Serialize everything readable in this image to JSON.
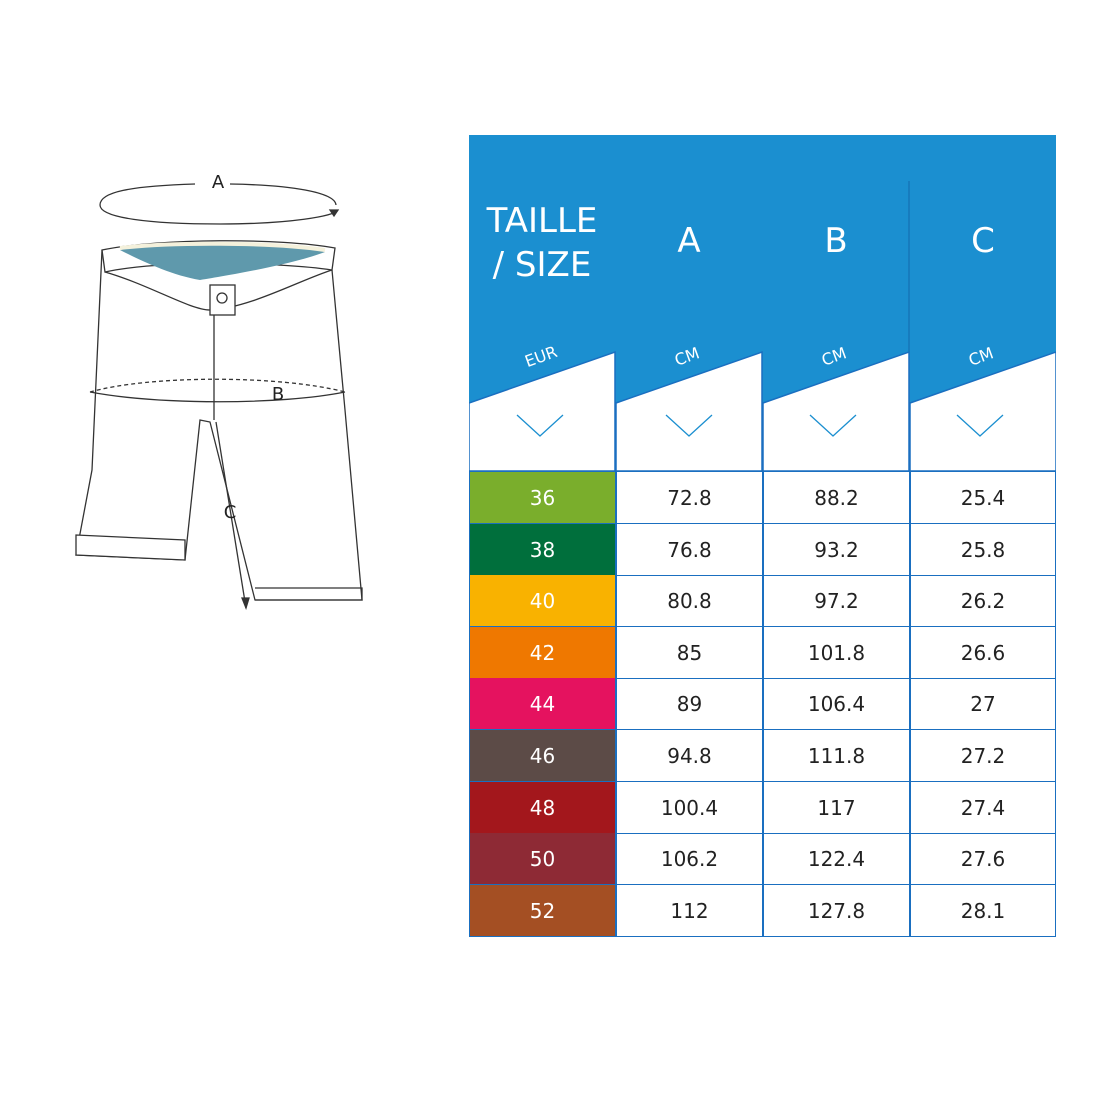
{
  "illustration": {
    "labels": {
      "a": "A",
      "b": "B",
      "c": "C"
    }
  },
  "table": {
    "header_color": "#1b8fd0",
    "border_color": "#1a6fc0",
    "columns": [
      {
        "title_line1": "TAILLE",
        "title_line2": "/ SIZE",
        "unit": "EUR"
      },
      {
        "title_line1": "A",
        "unit": "CM"
      },
      {
        "title_line1": "B",
        "unit": "CM"
      },
      {
        "title_line1": "C",
        "unit": "CM"
      }
    ],
    "rows": [
      {
        "size": "36",
        "color": "#7aae2c",
        "a": "72.8",
        "b": "88.2",
        "c": "25.4"
      },
      {
        "size": "38",
        "color": "#006f3c",
        "a": "76.8",
        "b": "93.2",
        "c": "25.8"
      },
      {
        "size": "40",
        "color": "#f9b200",
        "a": "80.8",
        "b": "97.2",
        "c": "26.2"
      },
      {
        "size": "42",
        "color": "#ef7800",
        "a": "85",
        "b": "101.8",
        "c": "26.6"
      },
      {
        "size": "44",
        "color": "#e5125f",
        "a": "89",
        "b": "106.4",
        "c": "27"
      },
      {
        "size": "46",
        "color": "#5c4b47",
        "a": "94.8",
        "b": "111.8",
        "c": "27.2"
      },
      {
        "size": "48",
        "color": "#a3171c",
        "a": "100.4",
        "b": "117",
        "c": "27.4"
      },
      {
        "size": "50",
        "color": "#8e2a35",
        "a": "106.2",
        "b": "122.4",
        "c": "27.6"
      },
      {
        "size": "52",
        "color": "#a44f23",
        "a": "112",
        "b": "127.8",
        "c": "28.1"
      }
    ]
  }
}
